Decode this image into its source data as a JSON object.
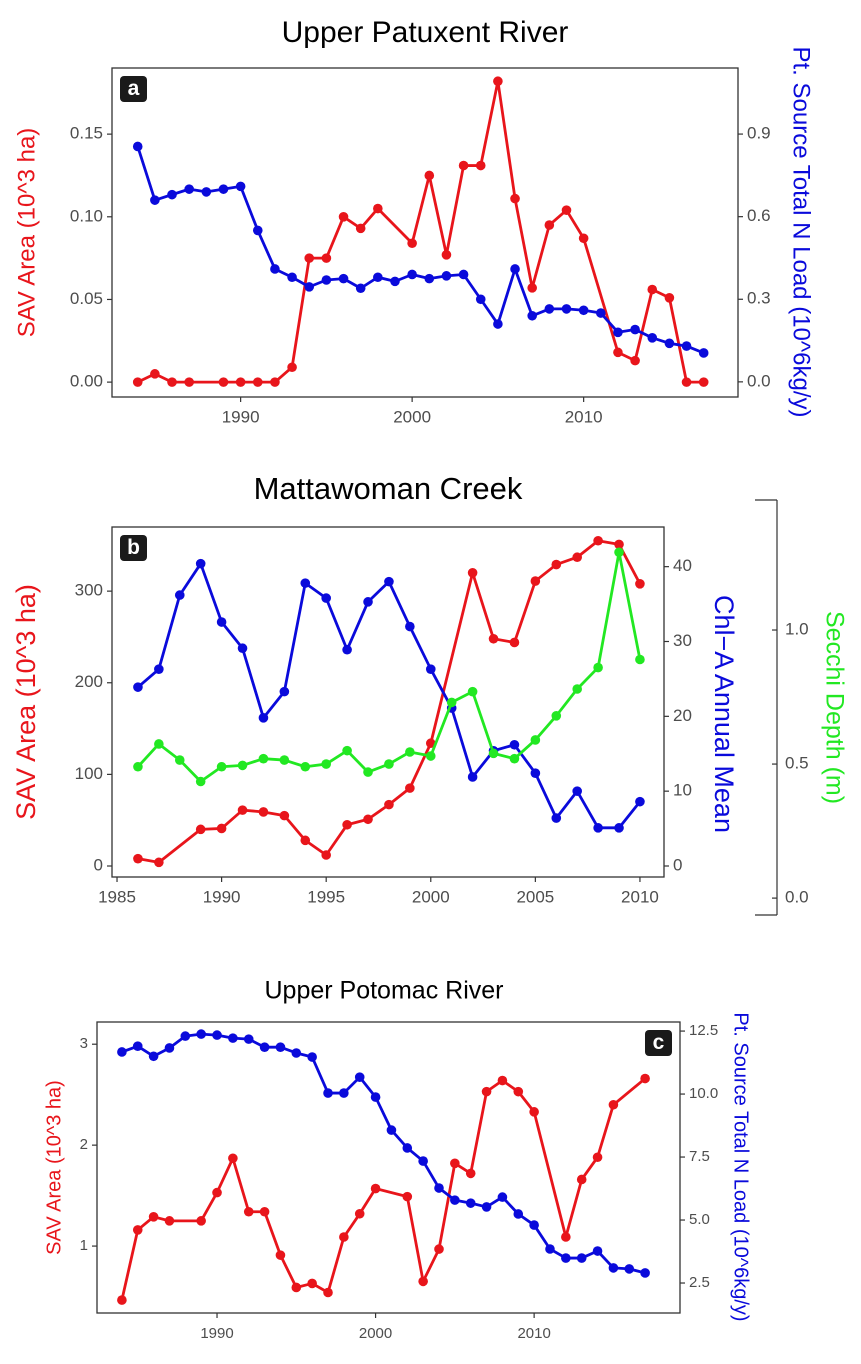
{
  "chart_data": [
    {
      "type": "line",
      "panel_label": "a",
      "title": "Upper Patuxent River",
      "ylabel": "SAV Area (10^3 ha)",
      "y2label": "Pt. Source Total N Load (10^6kg/y)",
      "xlim": [
        1982.5,
        2019
      ],
      "xticks": [
        1990,
        2000,
        2010
      ],
      "ylim": [
        -0.009,
        0.19
      ],
      "yticks": [
        {
          "value": 0,
          "label": "0.00"
        },
        0.05,
        {
          "value": 0.1,
          "label": "0.10"
        },
        0.15
      ],
      "y2lim": [
        -0.055,
        1.14
      ],
      "y2ticks": [
        {
          "value": 0,
          "label": "0.0"
        },
        0.3,
        0.6,
        0.9
      ],
      "series": [
        {
          "color": "#e8151b",
          "axis": "y",
          "x": [
            1984,
            1985,
            1986,
            1987,
            1989,
            1990,
            1991,
            1992,
            1993,
            1994,
            1995,
            1996,
            1997,
            1998,
            2000,
            2001,
            2002,
            2003,
            2004,
            2005,
            2006,
            2007,
            2008,
            2009,
            2010,
            2012,
            2013,
            2014,
            2015,
            2016,
            2017
          ],
          "values": [
            0,
            0.005,
            0,
            0,
            0,
            0,
            0,
            0,
            0.009,
            0.075,
            0.075,
            0.1,
            0.093,
            0.105,
            0.084,
            0.125,
            0.077,
            0.131,
            0.131,
            0.182,
            0.111,
            0.057,
            0.095,
            0.104,
            0.087,
            0.018,
            0.013,
            0.056,
            0.051,
            0,
            0
          ]
        },
        {
          "color": "#0a0adb",
          "axis": "y2",
          "x": [
            1984,
            1985,
            1986,
            1987,
            1988,
            1989,
            1990,
            1991,
            1992,
            1993,
            1994,
            1995,
            1996,
            1997,
            1998,
            1999,
            2000,
            2001,
            2002,
            2003,
            2004,
            2005,
            2006,
            2007,
            2008,
            2009,
            2010,
            2011,
            2012,
            2013,
            2014,
            2015,
            2016,
            2017
          ],
          "values": [
            0.855,
            0.66,
            0.68,
            0.7,
            0.69,
            0.7,
            0.71,
            0.55,
            0.41,
            0.38,
            0.345,
            0.37,
            0.375,
            0.34,
            0.38,
            0.365,
            0.39,
            0.375,
            0.385,
            0.39,
            0.3,
            0.21,
            0.41,
            0.24,
            0.265,
            0.265,
            0.26,
            0.25,
            0.18,
            0.19,
            0.16,
            0.14,
            0.13,
            0.105
          ]
        }
      ]
    },
    {
      "type": "line",
      "panel_label": "b",
      "title": "Mattawoman Creek",
      "ylabel": "SAV Area (10^3 ha)",
      "y2label": "Chl−A Annual Mean",
      "y3label": "Secchi Depth (m)",
      "xlim": [
        1984.76,
        2011.15
      ],
      "xticks": [
        1985,
        1990,
        1995,
        2000,
        2005,
        2010
      ],
      "ylim": [
        -12,
        370
      ],
      "yticks": [
        0,
        100,
        200,
        300
      ],
      "y2lim": [
        -1.47,
        45.3
      ],
      "y2ticks": [
        0,
        10,
        20,
        30,
        40
      ],
      "y3lim": [
        -0.063,
        1.485
      ],
      "y3ticks": [
        {
          "value": 0,
          "label": "0.0"
        },
        0.5,
        {
          "value": 1,
          "label": "1.0"
        }
      ],
      "series": [
        {
          "color": "#e8151b",
          "axis": "y",
          "x": [
            1986,
            1987,
            1989,
            1990,
            1991,
            1992,
            1993,
            1994,
            1995,
            1996,
            1997,
            1998,
            1999,
            2000,
            2002,
            2003,
            2004,
            2005,
            2006,
            2007,
            2008,
            2009,
            2010
          ],
          "values": [
            8,
            4,
            40,
            41,
            61,
            59,
            55,
            28,
            12,
            45,
            51,
            67,
            85,
            134,
            320,
            248,
            244,
            311,
            329,
            337,
            355,
            351,
            308
          ]
        },
        {
          "color": "#0a0adb",
          "axis": "y2",
          "x": [
            1986,
            1987,
            1988,
            1989,
            1990,
            1991,
            1992,
            1993,
            1994,
            1995,
            1996,
            1997,
            1998,
            1999,
            2000,
            2001,
            2002,
            2003,
            2004,
            2005,
            2006,
            2007,
            2008,
            2009,
            2010
          ],
          "values": [
            23.9,
            26.3,
            36.2,
            40.4,
            32.6,
            29.1,
            19.8,
            23.3,
            37.8,
            35.8,
            28.9,
            35.3,
            38,
            32,
            26.3,
            21.1,
            11.9,
            15.4,
            16.2,
            12.4,
            6.4,
            10,
            5.1,
            5.1,
            8.6
          ]
        },
        {
          "color": "#22e822",
          "axis": "y3",
          "x": [
            1986,
            1987,
            1988,
            1989,
            1990,
            1991,
            1992,
            1993,
            1994,
            1995,
            1996,
            1997,
            1998,
            1999,
            2000,
            2001,
            2002,
            2003,
            2004,
            2005,
            2006,
            2007,
            2008,
            2009,
            2010
          ],
          "values": [
            0.49,
            0.575,
            0.515,
            0.435,
            0.49,
            0.495,
            0.52,
            0.515,
            0.49,
            0.5,
            0.55,
            0.47,
            0.5,
            0.545,
            0.53,
            0.73,
            0.77,
            0.54,
            0.52,
            0.59,
            0.68,
            0.78,
            0.86,
            1.29,
            0.89
          ]
        }
      ]
    },
    {
      "type": "line",
      "panel_label": "c",
      "title": "Upper Potomac River",
      "ylabel": "SAV Area (10^3 ha)",
      "y2label": "Pt. Source Total N Load (10^6kg/y)",
      "xlim": [
        1982.43,
        2019.2
      ],
      "xticks": [
        1990,
        2000,
        2010
      ],
      "ylim": [
        0.337,
        3.22
      ],
      "yticks": [
        1,
        2,
        3
      ],
      "y2lim": [
        1.31,
        12.86
      ],
      "y2ticks": [
        2.5,
        {
          "value": 5,
          "label": "5.0"
        },
        7.5,
        {
          "value": 10,
          "label": "10.0"
        },
        12.5
      ],
      "series": [
        {
          "color": "#e8151b",
          "axis": "y",
          "x": [
            1984,
            1985,
            1986,
            1987,
            1989,
            1990,
            1991,
            1992,
            1993,
            1994,
            1995,
            1996,
            1997,
            1998,
            1999,
            2000,
            2002,
            2003,
            2004,
            2005,
            2006,
            2007,
            2008,
            2009,
            2010,
            2012,
            2013,
            2014,
            2015,
            2017
          ],
          "values": [
            0.465,
            1.16,
            1.29,
            1.25,
            1.25,
            1.53,
            1.87,
            1.34,
            1.34,
            0.91,
            0.59,
            0.63,
            0.54,
            1.09,
            1.32,
            1.57,
            1.49,
            0.65,
            0.97,
            1.82,
            1.72,
            2.53,
            2.64,
            2.53,
            2.33,
            1.09,
            1.66,
            1.88,
            2.4,
            2.66
          ]
        },
        {
          "color": "#0a0adb",
          "axis": "y2",
          "x": [
            1984,
            1985,
            1986,
            1987,
            1988,
            1989,
            1990,
            1991,
            1992,
            1993,
            1994,
            1995,
            1996,
            1997,
            1998,
            1999,
            2000,
            2001,
            2002,
            2003,
            2004,
            2005,
            2006,
            2007,
            2008,
            2009,
            2010,
            2011,
            2012,
            2013,
            2014,
            2015,
            2016,
            2017
          ],
          "values": [
            11.67,
            11.9,
            11.5,
            11.83,
            12.3,
            12.38,
            12.34,
            12.22,
            12.18,
            11.86,
            11.86,
            11.63,
            11.47,
            10.04,
            10.04,
            10.67,
            9.88,
            8.57,
            7.86,
            7.34,
            6.27,
            5.79,
            5.67,
            5.52,
            5.91,
            5.24,
            4.8,
            3.85,
            3.49,
            3.49,
            3.77,
            3.1,
            3.06,
            2.9
          ]
        }
      ]
    }
  ]
}
